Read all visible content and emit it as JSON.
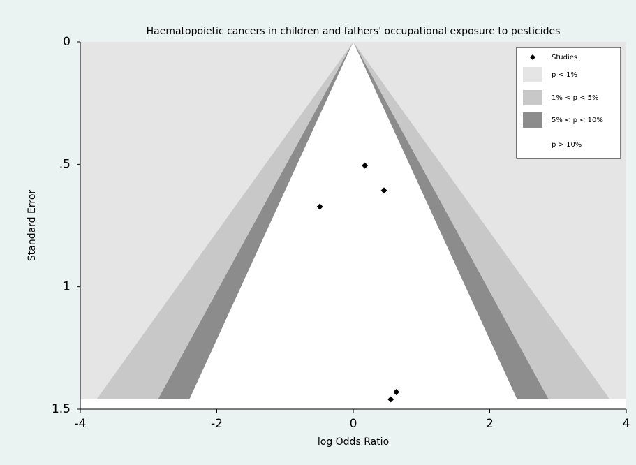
{
  "chart_data": {
    "type": "funnel",
    "title": "Haematopoietic cancers in children and fathers' occupational exposure to pesticides",
    "x_label": "log Odds Ratio",
    "y_label": "Standard Error",
    "xlim": [
      -4,
      4
    ],
    "xticks": [
      -4,
      -2,
      0,
      2,
      4
    ],
    "ylim": [
      0,
      1.5
    ],
    "y_inverted": true,
    "yticks": [
      0,
      {
        "value": 0.5,
        "label": ".5"
      },
      1,
      1.5
    ],
    "se_max": 1.46,
    "regions": [
      {
        "name": "p < 1%",
        "color": "#e5e5e5"
      },
      {
        "name": "1% < p < 5%",
        "color": "#c8c8c8",
        "z": 2.576
      },
      {
        "name": "5% < p < 10%",
        "color": "#8c8c8c",
        "z": 1.96
      },
      {
        "name": "p > 10%",
        "color": "#ffffff",
        "z": 1.645
      }
    ],
    "series": [
      {
        "name": "Studies",
        "color": "#000000",
        "x": [
          0.17,
          0.45,
          -0.49,
          0.63,
          0.55
        ],
        "values": [
          0.505,
          0.607,
          0.673,
          1.43,
          1.46
        ]
      }
    ],
    "legend": "top-right"
  }
}
